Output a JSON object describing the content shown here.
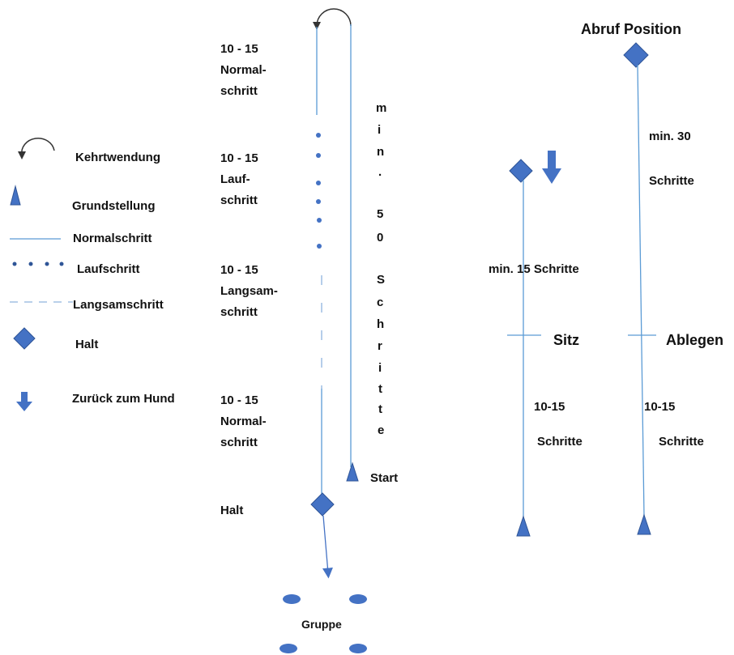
{
  "colors": {
    "shape": "#4472C4",
    "line": "#5B9BD5",
    "text": "#111111"
  },
  "legend": [
    {
      "icon": "u-turn-arrow-icon",
      "label": "Kehrtwendung"
    },
    {
      "icon": "triangle-icon",
      "label": "Grundstellung"
    },
    {
      "icon": "solid-line-icon",
      "label": "Normalschritt"
    },
    {
      "icon": "dotted-line-icon",
      "label": "Laufschritt"
    },
    {
      "icon": "dashed-line-icon",
      "label": "Langsamschritt"
    },
    {
      "icon": "diamond-icon",
      "label": "Halt"
    },
    {
      "icon": "down-arrow-icon",
      "label": "Zurück zum Hund"
    }
  ],
  "path": {
    "segments": [
      "10 - 15\nNormal-\nschritt",
      "10 - 15\nLauf-\nschritt",
      "10 - 15\nLangsam-\nschritt",
      "10 - 15\nNormal-\nschritt"
    ],
    "halt_label": "Halt",
    "start_label": "Start",
    "vertical_text": [
      "m",
      "i",
      "n",
      ".",
      "5",
      "0",
      "S",
      "c",
      "h",
      "r",
      "i",
      "t",
      "t",
      "e"
    ],
    "group_label": "Gruppe"
  },
  "sitz_exercise": {
    "min_label": "min.  15 Schritte",
    "label": "Sitz",
    "after_count": "10-15",
    "after_unit": "Schritte"
  },
  "ablegen_exercise": {
    "title": "Abruf Position",
    "min_label": "min. 30",
    "min_unit": "Schritte",
    "label": "Ablegen",
    "after_count": "10-15",
    "after_unit": "Schritte"
  }
}
